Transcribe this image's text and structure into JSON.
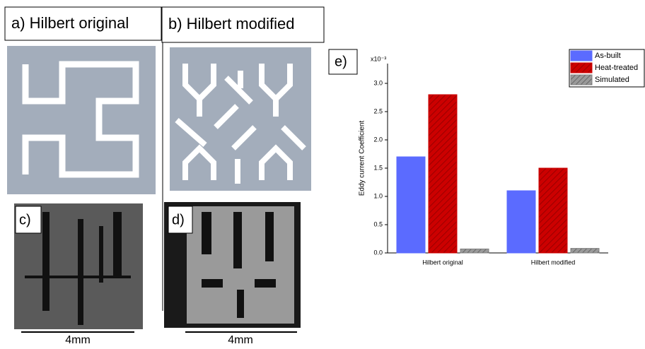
{
  "panels": {
    "a": "a) Hilbert original",
    "b": "b) Hilbert modified",
    "c": "c)",
    "d": "d)",
    "e": "e)",
    "scale_c": "4mm",
    "scale_d": "4mm"
  },
  "chart_data": {
    "type": "bar",
    "ylabel": "Eddy current Coefficient",
    "y_multiplier": "x10⁻³",
    "categories": [
      "Hilbert original",
      "Hilbert modified"
    ],
    "series": [
      {
        "name": "As-built",
        "color": "#5b6bff",
        "values": [
          1.7,
          1.1
        ]
      },
      {
        "name": "Heat-treated",
        "color": "#cc0000",
        "values": [
          2.8,
          1.5
        ]
      },
      {
        "name": "Simulated",
        "color": "#808080",
        "values": [
          0.07,
          0.08
        ]
      }
    ],
    "ylim": [
      0,
      3.35
    ],
    "yticks": [
      {
        "value": 0,
        "label": "0.0"
      },
      {
        "value": 0.5,
        "label": "0.5"
      },
      {
        "value": 1,
        "label": "1.0"
      },
      {
        "value": 1.5,
        "label": "1.5"
      },
      {
        "value": 2,
        "label": "2.0"
      },
      {
        "value": 2.5,
        "label": "2.5"
      },
      {
        "value": 3,
        "label": "3.0"
      }
    ],
    "legend": "upper-right"
  }
}
